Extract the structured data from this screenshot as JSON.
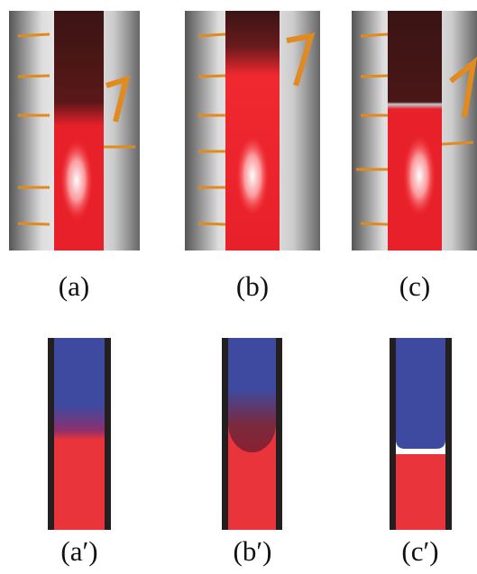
{
  "photos": [
    {
      "label": "(a)"
    },
    {
      "label": "(b)"
    },
    {
      "label": "(c)"
    }
  ],
  "diagrams": [
    {
      "label": "(a′)"
    },
    {
      "label": "(b′)"
    },
    {
      "label": "(c′)"
    }
  ]
}
